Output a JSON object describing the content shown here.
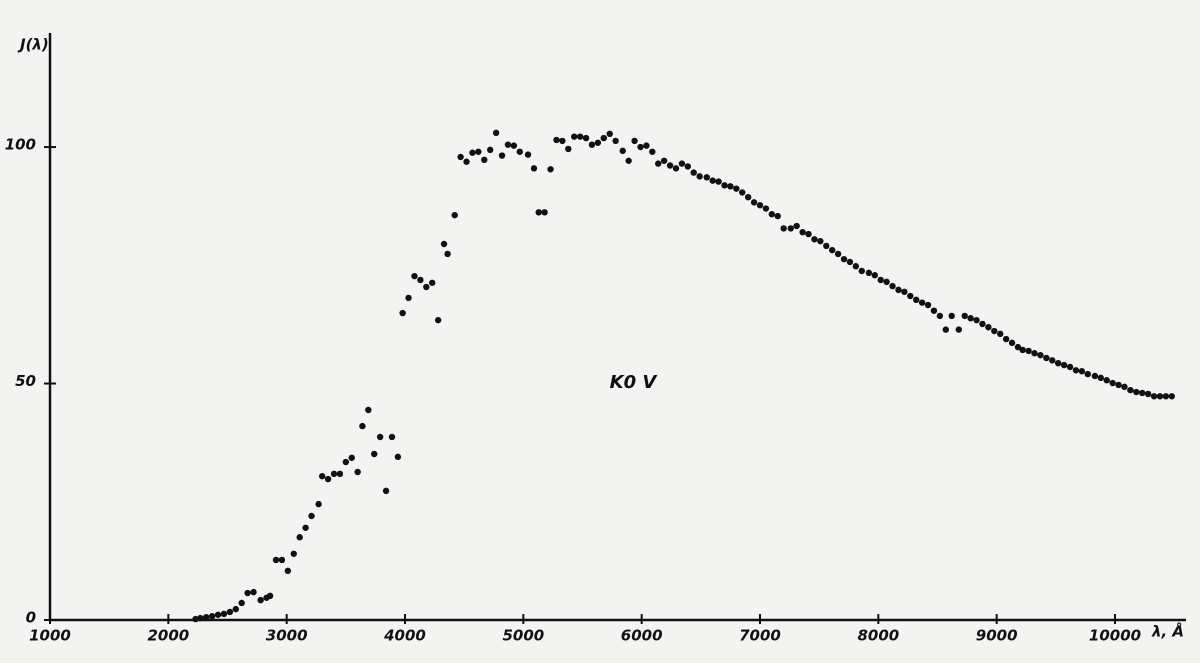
{
  "chart_data": {
    "type": "scatter",
    "y_label": "J(λ)",
    "x_label": "λ, Å",
    "annotation": "K0 V",
    "x": [
      2230,
      2270,
      2320,
      2370,
      2420,
      2470,
      2520,
      2570,
      2620,
      2670,
      2720,
      2780,
      2830,
      2860,
      2910,
      2960,
      3010,
      3060,
      3110,
      3160,
      3210,
      3270,
      3300,
      3350,
      3400,
      3450,
      3500,
      3550,
      3600,
      3640,
      3690,
      3740,
      3790,
      3840,
      3890,
      3940,
      3980,
      4030,
      4080,
      4130,
      4180,
      4230,
      4280,
      4330,
      4360,
      4420,
      4470,
      4520,
      4570,
      4620,
      4670,
      4720,
      4770,
      4820,
      4870,
      4920,
      4970,
      5040,
      5090,
      5130,
      5180,
      5230,
      5280,
      5330,
      5380,
      5430,
      5480,
      5530,
      5580,
      5630,
      5680,
      5730,
      5780,
      5840,
      5890,
      5940,
      5990,
      6040,
      6090,
      6140,
      6190,
      6240,
      6290,
      6340,
      6390,
      6440,
      6490,
      6550,
      6600,
      6650,
      6700,
      6750,
      6800,
      6850,
      6900,
      6950,
      7000,
      7050,
      7100,
      7150,
      7200,
      7260,
      7310,
      7360,
      7410,
      7460,
      7510,
      7560,
      7610,
      7660,
      7710,
      7760,
      7810,
      7860,
      7920,
      7970,
      8020,
      8070,
      8120,
      8170,
      8220,
      8270,
      8320,
      8370,
      8420,
      8470,
      8520,
      8570,
      8620,
      8680,
      8730,
      8780,
      8830,
      8880,
      8930,
      8980,
      9030,
      9080,
      9130,
      9180,
      9220,
      9270,
      9320,
      9370,
      9420,
      9470,
      9520,
      9570,
      9620,
      9670,
      9720,
      9770,
      9830,
      9880,
      9930,
      9980,
      10030,
      10080,
      10130,
      10180,
      10230,
      10280,
      10330,
      10380,
      10430,
      10480
    ],
    "values": [
      0.2,
      0.4,
      0.6,
      0.8,
      1.1,
      1.3,
      1.7,
      2.3,
      3.6,
      5.7,
      5.9,
      4.2,
      4.7,
      5.1,
      12.7,
      12.7,
      10.4,
      14.0,
      17.5,
      19.5,
      22.0,
      24.5,
      30.4,
      29.8,
      30.9,
      30.9,
      33.4,
      34.3,
      31.3,
      41.0,
      44.4,
      35.1,
      38.7,
      27.3,
      38.7,
      34.5,
      64.9,
      68.1,
      72.7,
      71.9,
      70.4,
      71.3,
      63.4,
      79.5,
      77.4,
      85.6,
      97.9,
      96.9,
      98.8,
      99.0,
      97.3,
      99.4,
      103.0,
      98.2,
      100.5,
      100.3,
      99.0,
      98.4,
      95.5,
      86.2,
      86.2,
      95.3,
      101.5,
      101.3,
      99.6,
      102.2,
      102.2,
      101.9,
      100.5,
      100.9,
      101.9,
      102.8,
      101.3,
      99.2,
      97.1,
      101.3,
      100.0,
      100.3,
      99.0,
      96.5,
      97.1,
      96.1,
      95.5,
      96.5,
      95.9,
      94.6,
      93.8,
      93.6,
      92.9,
      92.7,
      91.9,
      91.7,
      91.2,
      90.4,
      89.4,
      88.3,
      87.7,
      87.0,
      85.8,
      85.4,
      82.8,
      82.8,
      83.3,
      82.0,
      81.6,
      80.5,
      80.1,
      79.1,
      78.2,
      77.4,
      76.3,
      75.7,
      74.8,
      73.8,
      73.4,
      72.9,
      71.9,
      71.5,
      70.6,
      69.8,
      69.4,
      68.5,
      67.7,
      67.1,
      66.6,
      65.4,
      64.3,
      61.4,
      64.3,
      61.4,
      64.3,
      63.8,
      63.4,
      62.6,
      61.9,
      61.1,
      60.5,
      59.4,
      58.6,
      57.7,
      57.1,
      56.9,
      56.4,
      56.0,
      55.4,
      54.9,
      54.3,
      53.9,
      53.5,
      52.8,
      52.6,
      52.0,
      51.6,
      51.2,
      50.7,
      50.1,
      49.7,
      49.3,
      48.6,
      48.2,
      48.0,
      47.8,
      47.3,
      47.3,
      47.3,
      47.3
    ],
    "color": "#111111",
    "xlim": [
      1000,
      10600
    ],
    "xticks": [
      1000,
      2000,
      3000,
      4000,
      5000,
      6000,
      7000,
      8000,
      9000,
      10000
    ],
    "ylim": [
      0,
      122
    ],
    "yticks": [
      0,
      50,
      100
    ],
    "grid": false
  }
}
